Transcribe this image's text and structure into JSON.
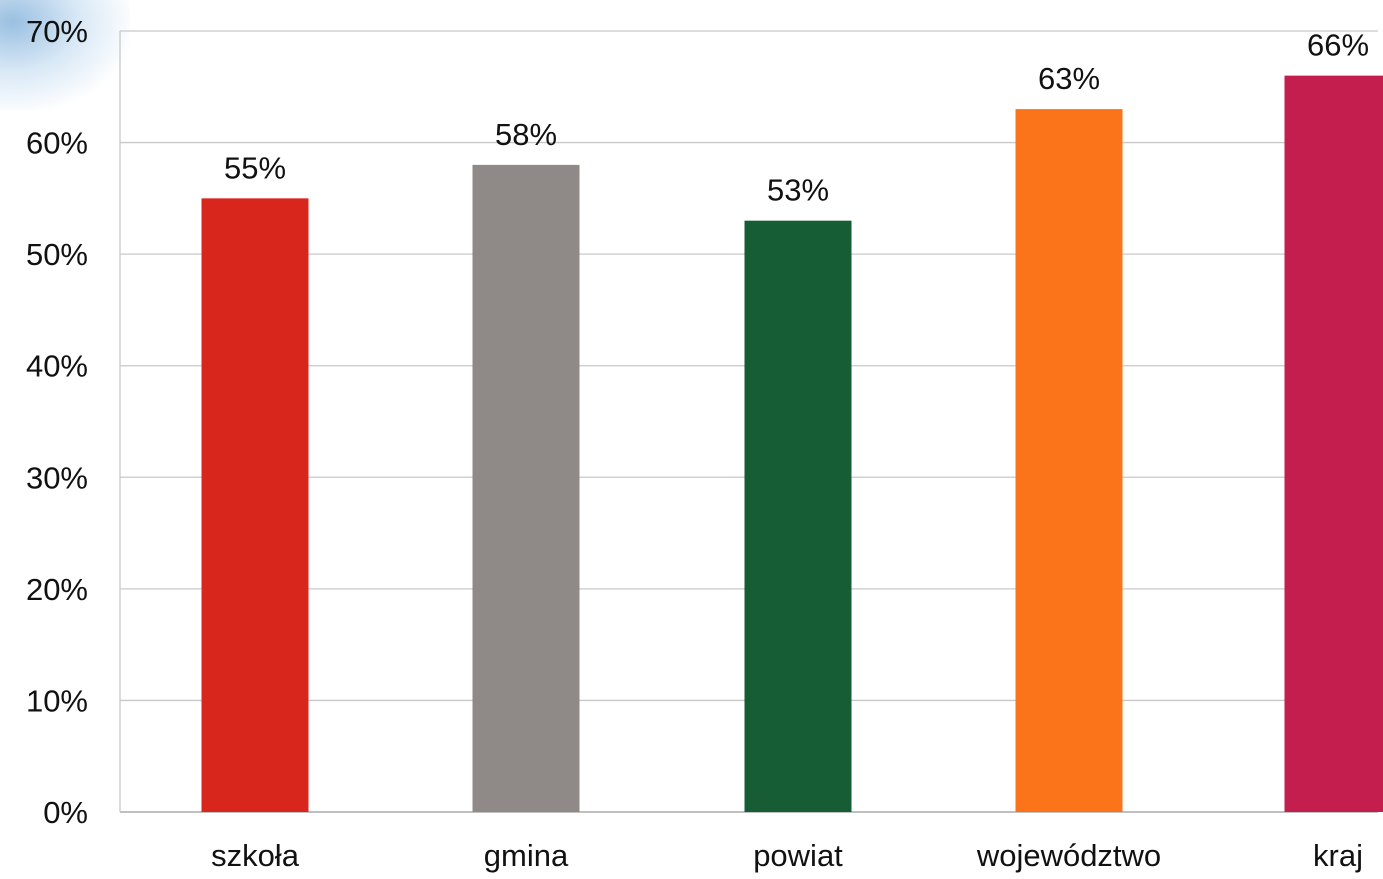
{
  "chart_data": {
    "type": "bar",
    "title": "",
    "xlabel": "",
    "ylabel": "",
    "categories": [
      "szkoła",
      "gmina",
      "powiat",
      "województwo",
      "kraj"
    ],
    "values": [
      55,
      58,
      53,
      63,
      66
    ],
    "data_labels": [
      "55%",
      "58%",
      "53%",
      "63%",
      "66%"
    ],
    "colors": [
      "#d9261c",
      "#8f8a87",
      "#165c34",
      "#fb7419",
      "#c41e4e"
    ],
    "ylim": [
      0,
      70
    ],
    "y_ticks": [
      0,
      10,
      20,
      30,
      40,
      50,
      60,
      70
    ],
    "y_tick_labels": [
      "0%",
      "10%",
      "20%",
      "30%",
      "40%",
      "50%",
      "60%",
      "70%"
    ],
    "grid": true,
    "legend": "none"
  }
}
